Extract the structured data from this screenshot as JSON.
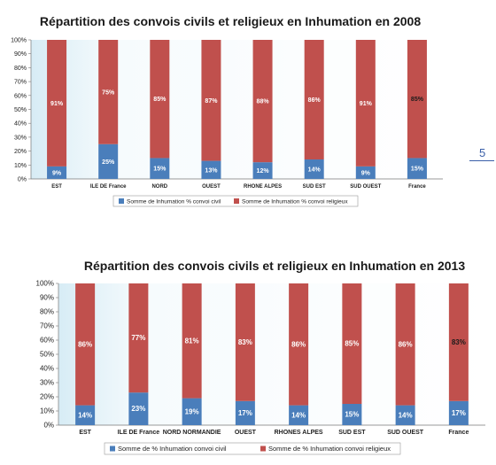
{
  "page_number": "5",
  "chart_data": [
    {
      "type": "bar",
      "stacked": true,
      "title": "Répartition des convois civils et religieux en Inhumation en 2008",
      "categories": [
        "EST",
        "ILE DE France",
        "NORD",
        "OUEST",
        "RHONE ALPES",
        "SUD EST",
        "SUD OUEST",
        "France"
      ],
      "series": [
        {
          "name": "Somme de Inhumation  % convoi civil",
          "color": "#4a7ebb",
          "values": [
            9,
            25,
            15,
            13,
            12,
            14,
            9,
            15
          ]
        },
        {
          "name": "Somme de Inhumation  % convoi religieux",
          "color": "#c0504d",
          "values": [
            91,
            75,
            85,
            87,
            88,
            86,
            91,
            85
          ]
        }
      ],
      "ylim": [
        0,
        100
      ],
      "yticks": [
        "0%",
        "10%",
        "20%",
        "30%",
        "40%",
        "50%",
        "60%",
        "70%",
        "80%",
        "90%",
        "100%"
      ],
      "grid": false,
      "legend": "bottom"
    },
    {
      "type": "bar",
      "stacked": true,
      "title": "Répartition des convois civils et religieux en Inhumation en 2013",
      "categories": [
        "EST",
        "ILE DE France",
        "NORD NORMANDIE",
        "OUEST",
        "RHONES ALPES",
        "SUD EST",
        "SUD OUEST",
        "France"
      ],
      "series": [
        {
          "name": "Somme de % Inhumation  convoi civil",
          "color": "#4a7ebb",
          "values": [
            14,
            23,
            19,
            17,
            14,
            15,
            14,
            17
          ]
        },
        {
          "name": "Somme de % Inhumation  convoi religieux",
          "color": "#c0504d",
          "values": [
            86,
            77,
            81,
            83,
            86,
            85,
            86,
            83
          ]
        }
      ],
      "ylim": [
        0,
        100
      ],
      "yticks": [
        "0%",
        "10%",
        "20%",
        "30%",
        "40%",
        "50%",
        "60%",
        "70%",
        "80%",
        "90%",
        "100%"
      ],
      "grid": false,
      "legend": "bottom"
    }
  ]
}
